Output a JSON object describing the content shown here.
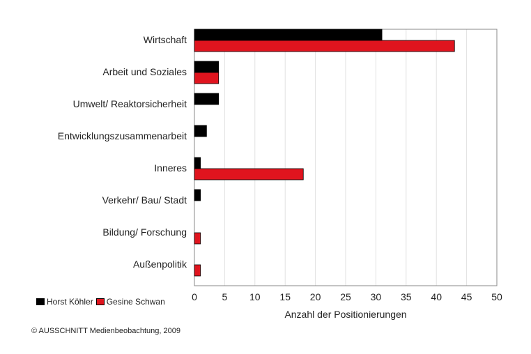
{
  "chart_data": {
    "type": "bar",
    "orientation": "horizontal",
    "categories": [
      "Wirtschaft",
      "Arbeit und Soziales",
      "Umwelt/ Reaktorsicherheit",
      "Entwicklungszusammenarbeit",
      "Inneres",
      "Verkehr/ Bau/ Stadt",
      "Bildung/ Forschung",
      "Außenpolitik"
    ],
    "series": [
      {
        "name": "Horst Köhler",
        "color": "#000000",
        "values": [
          31,
          4,
          4,
          2,
          1,
          1,
          0,
          0
        ]
      },
      {
        "name": "Gesine Schwan",
        "color": "#e0141e",
        "values": [
          43,
          4,
          0,
          0,
          18,
          0,
          1,
          1
        ]
      }
    ],
    "xlabel": "Anzahl der Positionierungen",
    "xlim": [
      0,
      50
    ],
    "xticks": [
      "0",
      "5",
      "10",
      "15",
      "20",
      "25",
      "30",
      "35",
      "40",
      "45",
      "50"
    ],
    "grid": "vertical",
    "legend_position": "bottom-left"
  },
  "credit": "© AUSSCHNITT Medienbeobachtung, 2009"
}
